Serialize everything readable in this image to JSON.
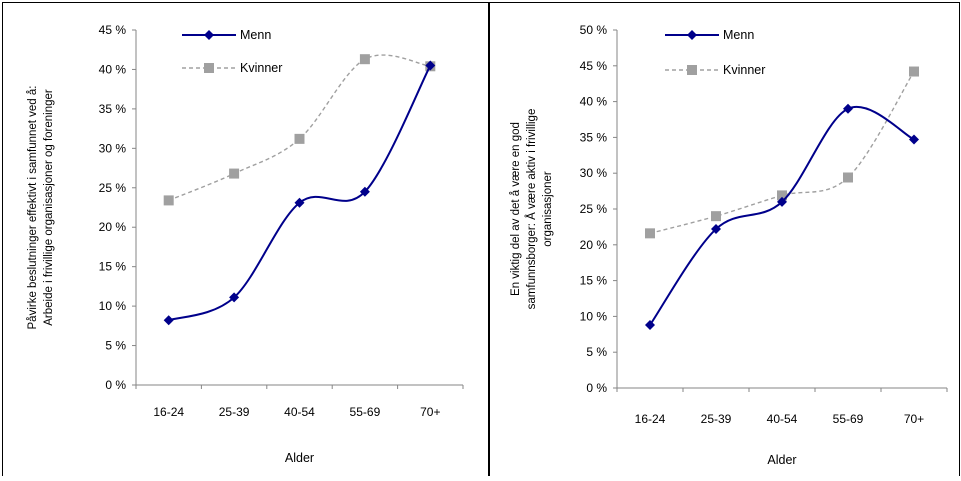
{
  "chart_data": [
    {
      "type": "line",
      "categories": [
        "16-24",
        "25-39",
        "40-54",
        "55-69",
        "70+"
      ],
      "xlabel": "Alder",
      "ylabel_lines": [
        "Påvirke beslutninger effektivt i samfunnet ved å:",
        "Arbeide i frivillige organisasjoner og foreninger"
      ],
      "ylim": [
        0,
        45
      ],
      "yticks": [
        "0 %",
        "5 %",
        "10 %",
        "15 %",
        "20 %",
        "25 %",
        "30 %",
        "35 %",
        "40 %",
        "45 %"
      ],
      "legend_position": "top-left",
      "series": [
        {
          "name": "Menn",
          "values": [
            8.2,
            11.1,
            23.1,
            24.5,
            40.5
          ],
          "color": "#00008b",
          "style": "solid",
          "marker": "diamond"
        },
        {
          "name": "Kvinner",
          "values": [
            23.4,
            26.8,
            31.2,
            41.3,
            40.4
          ],
          "color": "#a0a0a0",
          "style": "dashed",
          "marker": "square"
        }
      ]
    },
    {
      "type": "line",
      "categories": [
        "16-24",
        "25-39",
        "40-54",
        "55-69",
        "70+"
      ],
      "xlabel": "Alder",
      "ylabel_lines": [
        "En viktig del av det å være en god",
        "samfunnsborger: Å være aktiv i frivillige",
        "organisasjoner"
      ],
      "ylim": [
        0,
        50
      ],
      "yticks": [
        "0 %",
        "5 %",
        "10 %",
        "15 %",
        "20 %",
        "25 %",
        "30 %",
        "35 %",
        "40 %",
        "45 %",
        "50 %"
      ],
      "legend_position": "top-left",
      "series": [
        {
          "name": "Menn",
          "values": [
            8.8,
            22.2,
            26.0,
            39.0,
            34.7
          ],
          "color": "#00008b",
          "style": "solid",
          "marker": "diamond"
        },
        {
          "name": "Kvinner",
          "values": [
            21.6,
            24.0,
            26.9,
            29.4,
            44.2
          ],
          "color": "#a0a0a0",
          "style": "dashed",
          "marker": "square"
        }
      ]
    }
  ]
}
